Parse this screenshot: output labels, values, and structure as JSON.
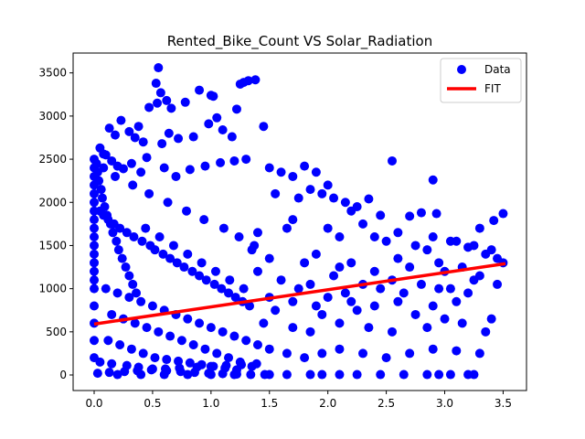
{
  "chart_data": {
    "type": "scatter",
    "title": "Rented_Bike_Count VS Solar_Radiation",
    "xlabel": "",
    "ylabel": "",
    "xlim": [
      -0.18,
      3.7
    ],
    "ylim": [
      -180,
      3730
    ],
    "xticks": [
      0.0,
      0.5,
      1.0,
      1.5,
      2.0,
      2.5,
      3.0,
      3.5
    ],
    "xtick_labels": [
      "0.0",
      "0.5",
      "1.0",
      "1.5",
      "2.0",
      "2.5",
      "3.0",
      "3.5"
    ],
    "yticks": [
      0,
      500,
      1000,
      1500,
      2000,
      2500,
      3000,
      3500
    ],
    "ytick_labels": [
      "0",
      "500",
      "1000",
      "1500",
      "2000",
      "2500",
      "3000",
      "3500"
    ],
    "grid": false,
    "legend": {
      "placement": "top-right",
      "entries": [
        "Data",
        "FIT"
      ]
    },
    "colors": {
      "scatter": "#0000ff",
      "fit": "#ff0000"
    },
    "series": [
      {
        "name": "Data",
        "kind": "scatter",
        "x": [
          0.55,
          0.53,
          0.57,
          0.62,
          0.54,
          0.47,
          0.66,
          0.78,
          0.9,
          1.0,
          1.02,
          1.25,
          1.28,
          1.32,
          1.38,
          1.22,
          1.45,
          0.38,
          0.3,
          0.23,
          0.13,
          0.05,
          0.08,
          0.18,
          0.35,
          0.42,
          0.58,
          0.64,
          0.72,
          0.85,
          0.98,
          1.05,
          1.1,
          1.18,
          0.32,
          0.4,
          0.45,
          0.6,
          0.7,
          0.82,
          0.95,
          1.08,
          1.2,
          1.3,
          0.1,
          0.15,
          0.2,
          0.25,
          1.5,
          1.6,
          1.7,
          1.8,
          1.9,
          2.0,
          1.55,
          1.75,
          1.85,
          1.95,
          2.05,
          2.15,
          2.25,
          2.35,
          2.55,
          2.93,
          3.3,
          3.42,
          3.5,
          2.9,
          2.45,
          2.7,
          2.2,
          2.8,
          2.0,
          2.3,
          2.6,
          2.9,
          3.1,
          3.25,
          3.4,
          1.7,
          2.4,
          2.75,
          3.05,
          3.2,
          1.4,
          1.65,
          2.1,
          2.5,
          2.85,
          3.35,
          1.5,
          1.9,
          2.2,
          2.6,
          2.95,
          3.15,
          3.45,
          1.35,
          1.8,
          2.1,
          2.4,
          2.7,
          3.0,
          3.3,
          3.5,
          1.6,
          1.85,
          2.05,
          2.3,
          2.55,
          2.8,
          3.05,
          3.25,
          3.45,
          1.4,
          1.75,
          2.15,
          2.45,
          2.65,
          2.95,
          3.2,
          1.5,
          1.7,
          1.9,
          2.0,
          2.2,
          2.4,
          2.6,
          2.9,
          3.1,
          1.55,
          1.95,
          2.25,
          2.75,
          3.0,
          3.4,
          1.45,
          1.7,
          1.85,
          2.1,
          2.35,
          2.55,
          2.85,
          3.15,
          3.35,
          1.5,
          1.65,
          1.8,
          1.95,
          2.1,
          2.3,
          2.5,
          2.7,
          2.9,
          3.1,
          3.3,
          0.0,
          0.0,
          0.0,
          0.0,
          0.0,
          0.0,
          0.0,
          0.0,
          0.0,
          0.0,
          0.0,
          0.0,
          0.0,
          0.0,
          0.0,
          0.0,
          0.0,
          0.0,
          0.0,
          0.0,
          0.02,
          0.03,
          0.04,
          0.06,
          0.07,
          0.09,
          0.11,
          0.14,
          0.16,
          0.19,
          0.21,
          0.24,
          0.27,
          0.3,
          0.33,
          0.36,
          0.05,
          0.08,
          0.12,
          0.17,
          0.22,
          0.28,
          0.34,
          0.41,
          0.48,
          0.52,
          0.59,
          0.65,
          0.71,
          0.77,
          0.84,
          0.9,
          0.96,
          1.03,
          1.09,
          1.15,
          1.21,
          1.27,
          1.33,
          0.44,
          0.56,
          0.68,
          0.8,
          0.92,
          1.04,
          1.16,
          1.28,
          0.1,
          0.2,
          0.3,
          0.4,
          0.5,
          0.6,
          0.7,
          0.8,
          0.9,
          1.0,
          1.1,
          1.2,
          1.3,
          1.4,
          0.15,
          0.25,
          0.35,
          0.45,
          0.55,
          0.65,
          0.75,
          0.85,
          0.95,
          1.05,
          1.15,
          1.25,
          1.35,
          0.12,
          0.22,
          0.32,
          0.42,
          0.52,
          0.62,
          0.72,
          0.82,
          0.92,
          1.02,
          1.12,
          1.22,
          0.05,
          0.15,
          0.28,
          0.38,
          0.5,
          0.62,
          0.74,
          0.86,
          0.98,
          1.1,
          1.22,
          1.34,
          1.46,
          0.03,
          0.13,
          0.26,
          0.37,
          0.49,
          0.61,
          0.73,
          0.88,
          1.0,
          1.13,
          1.26,
          1.39,
          0.2,
          0.4,
          0.6,
          0.8,
          1.0,
          1.2,
          1.5,
          1.65,
          1.85,
          1.95,
          2.1,
          2.25,
          2.45,
          2.65,
          2.85,
          2.95,
          3.05,
          3.2,
          3.25,
          0.08,
          0.18,
          0.33,
          0.47,
          0.63,
          0.79,
          0.94,
          1.11,
          1.24,
          1.37
        ],
        "y": [
          3560,
          3380,
          3270,
          3180,
          3150,
          3100,
          3090,
          3160,
          3300,
          3240,
          3230,
          3370,
          3390,
          3410,
          3420,
          3080,
          2880,
          2880,
          2820,
          2950,
          2860,
          2630,
          2560,
          2780,
          2750,
          2700,
          2680,
          2800,
          2740,
          2760,
          2910,
          2980,
          2840,
          2760,
          2450,
          2350,
          2520,
          2400,
          2300,
          2380,
          2420,
          2460,
          2480,
          2500,
          2550,
          2480,
          2420,
          2390,
          2400,
          2350,
          2300,
          2420,
          2350,
          2200,
          2100,
          2050,
          2150,
          2100,
          2050,
          2000,
          1950,
          2040,
          2480,
          1870,
          1700,
          1790,
          1870,
          2260,
          1850,
          1840,
          1900,
          1880,
          1700,
          1750,
          1650,
          1600,
          1550,
          1500,
          1450,
          1800,
          1600,
          1500,
          1550,
          1480,
          1650,
          1700,
          1600,
          1550,
          1450,
          1400,
          1350,
          1400,
          1300,
          1350,
          1300,
          1250,
          1350,
          1450,
          1300,
          1250,
          1200,
          1250,
          1200,
          1150,
          1300,
          1100,
          1050,
          1150,
          1050,
          1100,
          1050,
          1000,
          1100,
          1050,
          1200,
          1000,
          950,
          1000,
          950,
          1000,
          950,
          900,
          850,
          800,
          900,
          850,
          800,
          850,
          800,
          850,
          750,
          700,
          750,
          700,
          650,
          650,
          600,
          550,
          500,
          600,
          550,
          500,
          550,
          600,
          500,
          300,
          250,
          200,
          250,
          300,
          250,
          200,
          250,
          300,
          280,
          250,
          2500,
          2400,
          2300,
          2200,
          2100,
          2000,
          1900,
          1800,
          1700,
          1600,
          1500,
          1400,
          1300,
          1200,
          1100,
          1000,
          800,
          600,
          400,
          200,
          2450,
          2350,
          2250,
          2150,
          2050,
          1950,
          1850,
          1750,
          1650,
          1550,
          1450,
          1350,
          1250,
          1150,
          1050,
          950,
          1900,
          1850,
          1800,
          1750,
          1700,
          1650,
          1600,
          1550,
          1500,
          1450,
          1400,
          1350,
          1300,
          1250,
          1200,
          1150,
          1100,
          1050,
          1000,
          950,
          900,
          850,
          800,
          1700,
          1600,
          1500,
          1400,
          1300,
          1200,
          1100,
          1000,
          1000,
          950,
          900,
          850,
          800,
          750,
          700,
          650,
          600,
          550,
          500,
          450,
          400,
          350,
          700,
          650,
          600,
          550,
          500,
          450,
          400,
          350,
          300,
          250,
          200,
          150,
          100,
          400,
          350,
          300,
          250,
          200,
          180,
          160,
          140,
          120,
          100,
          80,
          60,
          150,
          130,
          110,
          90,
          70,
          50,
          40,
          30,
          20,
          15,
          10,
          5,
          5,
          20,
          30,
          40,
          50,
          60,
          70,
          80,
          90,
          100,
          110,
          120,
          130,
          5,
          5,
          5,
          5,
          5,
          5,
          5,
          5,
          5,
          5,
          5,
          5,
          5,
          5,
          5,
          5,
          5,
          5,
          5,
          2400,
          2300,
          2200,
          2100,
          2000,
          1900,
          1800,
          1700,
          1600,
          1500
        ]
      },
      {
        "name": "FIT",
        "kind": "line",
        "x": [
          0.0,
          3.52
        ],
        "y": [
          590,
          1290
        ]
      }
    ]
  }
}
